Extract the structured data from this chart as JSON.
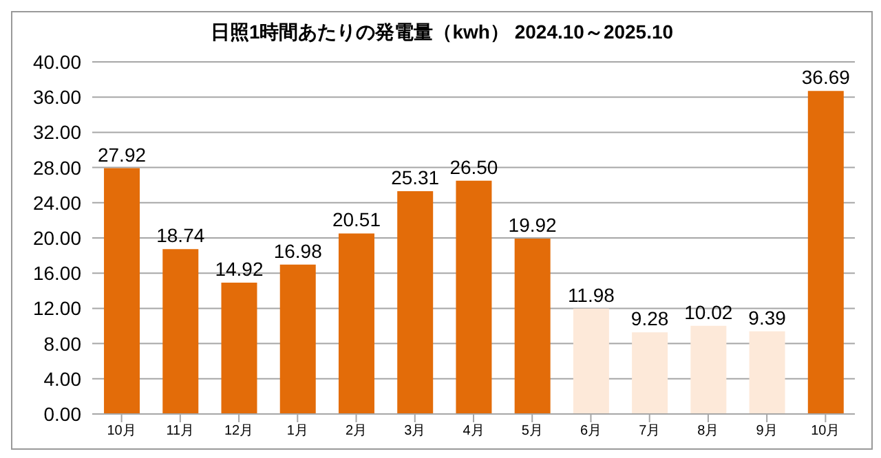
{
  "chart_data": {
    "type": "bar",
    "title": "日照1時間あたりの発電量（kwh）  2024.10～2025.10",
    "categories": [
      "10月",
      "11月",
      "12月",
      "1月",
      "2月",
      "3月",
      "4月",
      "5月",
      "6月",
      "7月",
      "8月",
      "9月",
      "10月"
    ],
    "values": [
      27.92,
      18.74,
      14.92,
      16.98,
      20.51,
      25.31,
      26.5,
      19.92,
      11.98,
      9.28,
      10.02,
      9.39,
      36.69
    ],
    "value_labels": [
      "27.92",
      "18.74",
      "14.92",
      "16.98",
      "20.51",
      "25.31",
      "26.50",
      "19.92",
      "11.98",
      "9.28",
      "10.02",
      "9.39",
      "36.69"
    ],
    "colors": [
      "#e36c09",
      "#e36c09",
      "#e36c09",
      "#e36c09",
      "#e36c09",
      "#e36c09",
      "#e36c09",
      "#e36c09",
      "#fde9d9",
      "#fde9d9",
      "#fde9d9",
      "#fde9d9",
      "#e36c09"
    ],
    "ylim": [
      0,
      40
    ],
    "yticks": [
      {
        "value": 0,
        "label": "0.00"
      },
      {
        "value": 4,
        "label": "4.00"
      },
      {
        "value": 8,
        "label": "8.00"
      },
      {
        "value": 12,
        "label": "12.00"
      },
      {
        "value": 16,
        "label": "16.00"
      },
      {
        "value": 20,
        "label": "20.00"
      },
      {
        "value": 24,
        "label": "24.00"
      },
      {
        "value": 28,
        "label": "28.00"
      },
      {
        "value": 32,
        "label": "32.00"
      },
      {
        "value": 36,
        "label": "36.00"
      },
      {
        "value": 40,
        "label": "40.00"
      }
    ],
    "grid": "y"
  }
}
